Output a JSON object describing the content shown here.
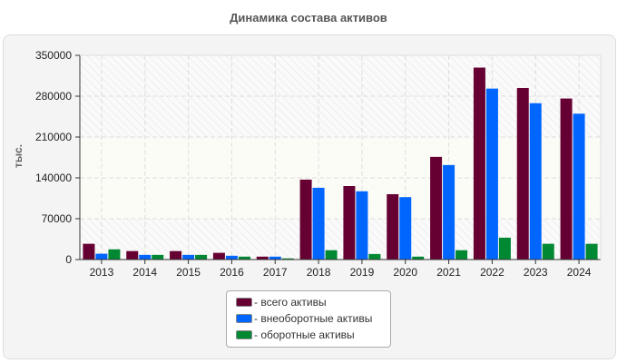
{
  "chart_data": {
    "type": "bar",
    "title": "Динамика состава активов",
    "ylabel": "тыс.",
    "xlabel": "",
    "ylim": [
      0,
      350000
    ],
    "yticks": [
      "0",
      "70000",
      "140000",
      "210000",
      "280000",
      "350000"
    ],
    "grid": true,
    "legend_position": "bottom",
    "categories": [
      "2013",
      "2014",
      "2015",
      "2016",
      "2017",
      "2018",
      "2019",
      "2020",
      "2021",
      "2022",
      "2023",
      "2024"
    ],
    "series": [
      {
        "name": "- всего активы",
        "color": "#660033",
        "values": [
          27000,
          14500,
          14500,
          11500,
          5000,
          137000,
          126000,
          112000,
          176000,
          329000,
          294000,
          276000
        ]
      },
      {
        "name": "- внеоборотные активы",
        "color": "#0066ff",
        "values": [
          10000,
          8000,
          8000,
          6500,
          5000,
          123000,
          117000,
          107000,
          162000,
          293000,
          268000,
          250000
        ]
      },
      {
        "name": "- оборотные активы",
        "color": "#008833",
        "values": [
          17500,
          8000,
          8000,
          5000,
          2000,
          16000,
          9500,
          5000,
          16000,
          37500,
          27000,
          27000
        ]
      }
    ]
  }
}
